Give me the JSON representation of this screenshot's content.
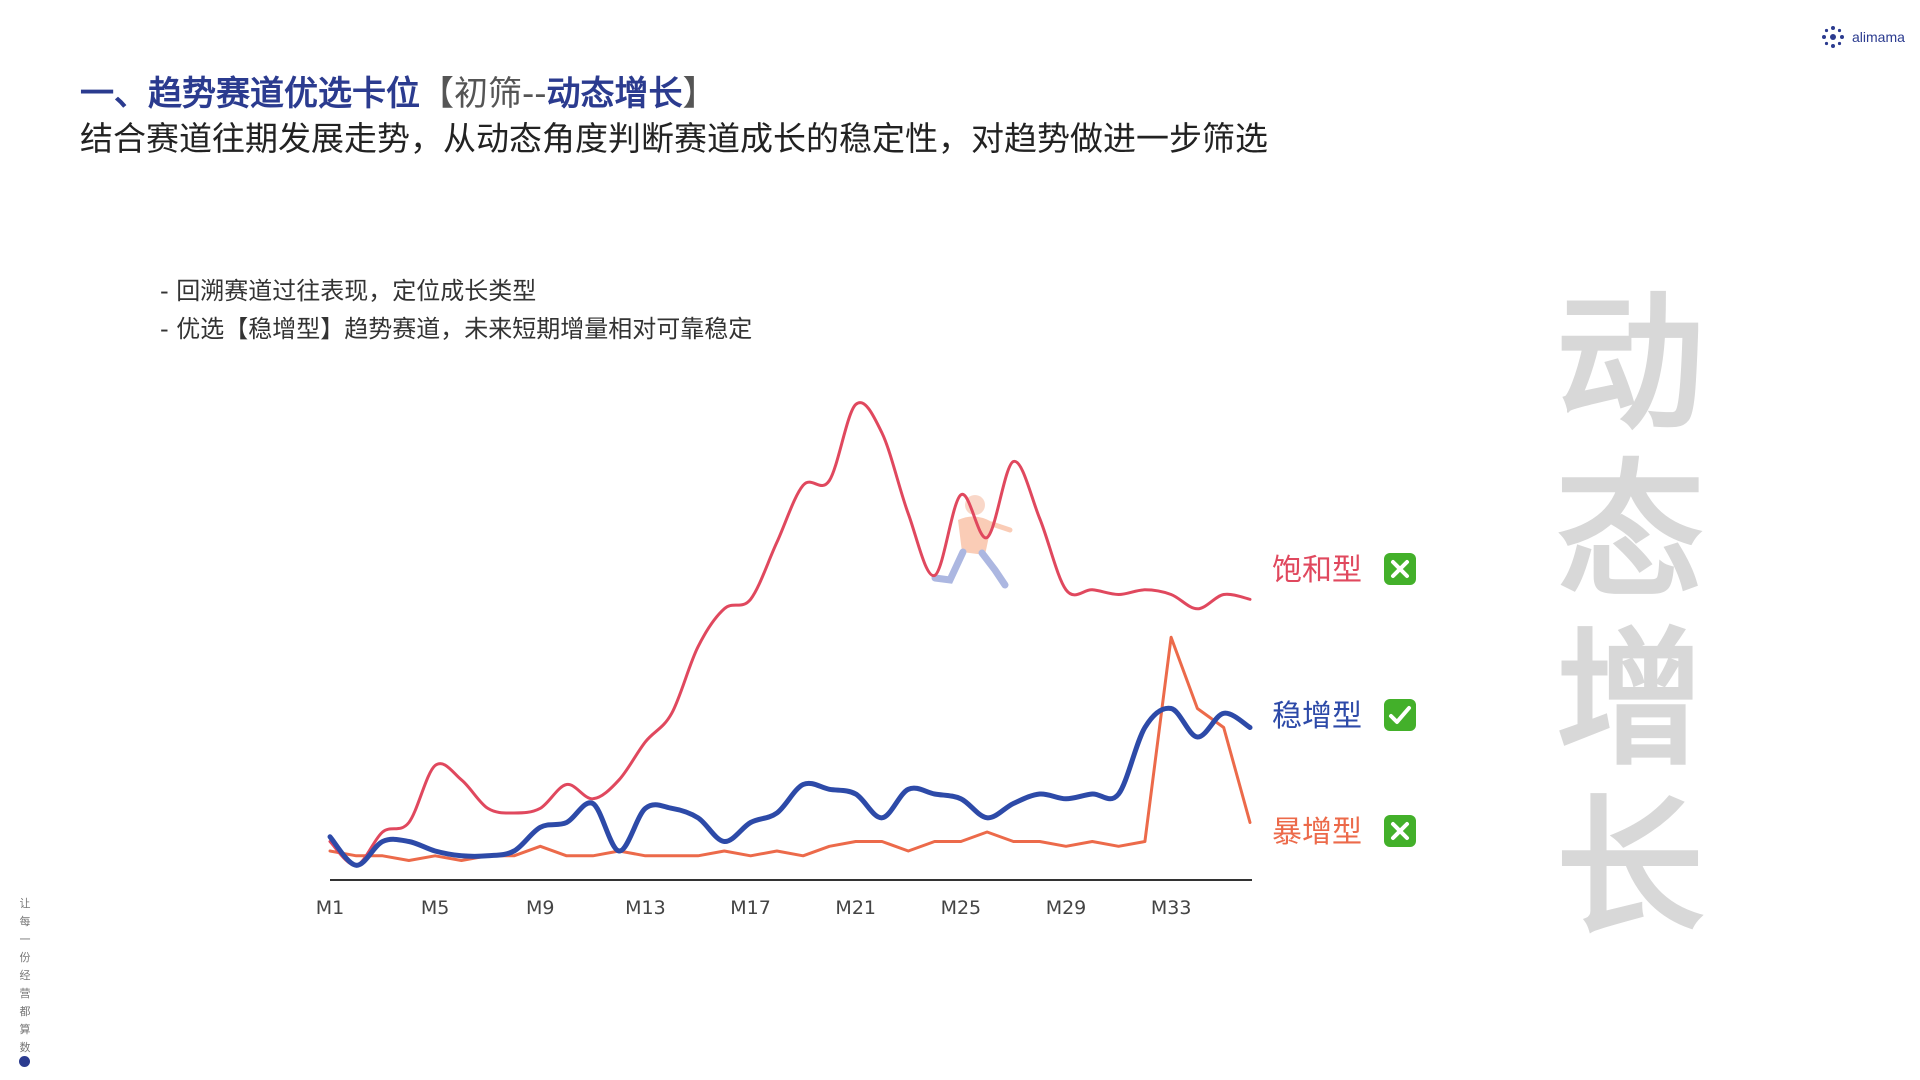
{
  "logo": {
    "text": "alimama",
    "icon": "alimama-star-icon"
  },
  "header": {
    "title_main": "一、趋势赛道优选卡位",
    "title_bracket_open": "【",
    "title_step": "初筛",
    "title_dash": "--",
    "title_highlight": "动态增长",
    "title_bracket_close": "】",
    "subtitle": "结合赛道往期发展走势，从动态角度判断赛道成长的稳定性，对趋势做进一步筛选"
  },
  "bullets": [
    "-  回溯赛道过往表现，定位成长类型",
    "-  优选【稳增型】趋势赛道，未来短期增量相对可靠稳定"
  ],
  "watermark": [
    "动",
    "态",
    "增",
    "长"
  ],
  "side_slogan": [
    "让",
    "每",
    "一",
    "份",
    "经",
    "营",
    "都",
    "算",
    "数"
  ],
  "chart_data": {
    "type": "line",
    "x": [
      "M1",
      "M2",
      "M3",
      "M4",
      "M5",
      "M6",
      "M7",
      "M8",
      "M9",
      "M10",
      "M11",
      "M12",
      "M13",
      "M14",
      "M15",
      "M16",
      "M17",
      "M18",
      "M19",
      "M20",
      "M21",
      "M22",
      "M23",
      "M24",
      "M25",
      "M26",
      "M27",
      "M28",
      "M29",
      "M30",
      "M31",
      "M32",
      "M33",
      "M34",
      "M35",
      "M36"
    ],
    "xticks": [
      "M1",
      "M5",
      "M9",
      "M13",
      "M17",
      "M21",
      "M25",
      "M29",
      "M33"
    ],
    "series": [
      {
        "name": "饱和型",
        "verdict_icon": "cross-mark-icon",
        "color": "#e0485e",
        "width": 3,
        "values": [
          6,
          1,
          8,
          10,
          22,
          19,
          13,
          12,
          13,
          18,
          15,
          19,
          27,
          33,
          47,
          55,
          57,
          69,
          81,
          82,
          98,
          92,
          75,
          62,
          79,
          70,
          86,
          74,
          59,
          59,
          58,
          59,
          58,
          55,
          58,
          57
        ]
      },
      {
        "name": "稳增型",
        "verdict_icon": "check-mark-icon",
        "color": "#2d4aa8",
        "width": 5,
        "values": [
          7,
          1,
          6,
          6,
          4,
          3,
          3,
          4,
          9,
          10,
          14,
          4,
          13,
          13,
          11,
          6,
          10,
          12,
          18,
          17,
          16,
          11,
          17,
          16,
          15,
          11,
          14,
          16,
          15,
          16,
          16,
          30,
          34,
          28,
          33,
          30
        ]
      },
      {
        "name": "暴增型",
        "verdict_icon": "cross-mark-icon",
        "color": "#ec6a4a",
        "width": 3,
        "values": [
          4,
          3,
          3,
          2,
          3,
          2,
          3,
          3,
          5,
          3,
          3,
          4,
          3,
          3,
          3,
          4,
          3,
          4,
          3,
          5,
          6,
          6,
          4,
          6,
          6,
          8,
          6,
          6,
          5,
          6,
          5,
          6,
          49,
          34,
          30,
          10
        ]
      }
    ],
    "ylim": [
      0,
      100
    ],
    "grid": false,
    "legend_position": "right"
  }
}
